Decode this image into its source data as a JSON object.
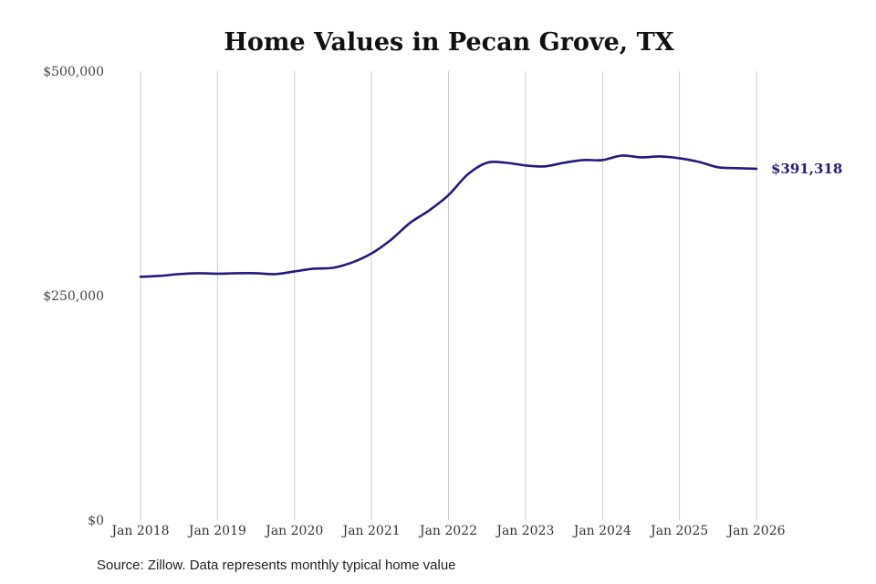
{
  "chart_data": {
    "type": "line",
    "title": "Home Values in Pecan Grove, TX",
    "xlabel": "",
    "ylabel": "",
    "x_start": "Jan 2018",
    "x_end": "Jan 2026",
    "x_ticks": [
      "Jan 2018",
      "Jan 2019",
      "Jan 2020",
      "Jan 2021",
      "Jan 2022",
      "Jan 2023",
      "Jan 2024",
      "Jan 2025",
      "Jan 2026"
    ],
    "ylim": [
      0,
      500000
    ],
    "y_ticks": [
      {
        "value": 0,
        "label": "$0"
      },
      {
        "value": 250000,
        "label": "$250,000"
      },
      {
        "value": 500000,
        "label": "$500,000"
      }
    ],
    "grid": "vertical",
    "line_color": "#231a7e",
    "grid_color": "#cccccc",
    "series": [
      {
        "name": "",
        "points": [
          {
            "date": "Jan 2018",
            "value": 271000
          },
          {
            "date": "Apr 2018",
            "value": 272000
          },
          {
            "date": "Jul 2018",
            "value": 274000
          },
          {
            "date": "Oct 2018",
            "value": 275000
          },
          {
            "date": "Jan 2019",
            "value": 274500
          },
          {
            "date": "Apr 2019",
            "value": 275000
          },
          {
            "date": "Jul 2019",
            "value": 275000
          },
          {
            "date": "Oct 2019",
            "value": 274000
          },
          {
            "date": "Jan 2020",
            "value": 277000
          },
          {
            "date": "Apr 2020",
            "value": 280000
          },
          {
            "date": "Jul 2020",
            "value": 281000
          },
          {
            "date": "Oct 2020",
            "value": 287000
          },
          {
            "date": "Jan 2021",
            "value": 297000
          },
          {
            "date": "Apr 2021",
            "value": 312000
          },
          {
            "date": "Jul 2021",
            "value": 331000
          },
          {
            "date": "Oct 2021",
            "value": 345000
          },
          {
            "date": "Jan 2022",
            "value": 362000
          },
          {
            "date": "Apr 2022",
            "value": 385000
          },
          {
            "date": "Jul 2022",
            "value": 398000
          },
          {
            "date": "Oct 2022",
            "value": 398000
          },
          {
            "date": "Jan 2023",
            "value": 395000
          },
          {
            "date": "Apr 2023",
            "value": 394000
          },
          {
            "date": "Jul 2023",
            "value": 398000
          },
          {
            "date": "Oct 2023",
            "value": 401000
          },
          {
            "date": "Jan 2024",
            "value": 401000
          },
          {
            "date": "Apr 2024",
            "value": 406000
          },
          {
            "date": "Jul 2024",
            "value": 404000
          },
          {
            "date": "Oct 2024",
            "value": 405000
          },
          {
            "date": "Jan 2025",
            "value": 403000
          },
          {
            "date": "Apr 2025",
            "value": 399000
          },
          {
            "date": "Jul 2025",
            "value": 393000
          },
          {
            "date": "Oct 2025",
            "value": 392000
          },
          {
            "date": "Jan 2026",
            "value": 391318
          }
        ]
      }
    ],
    "end_label": "$391,318"
  },
  "source_note": "Source: Zillow. Data represents monthly typical home value"
}
